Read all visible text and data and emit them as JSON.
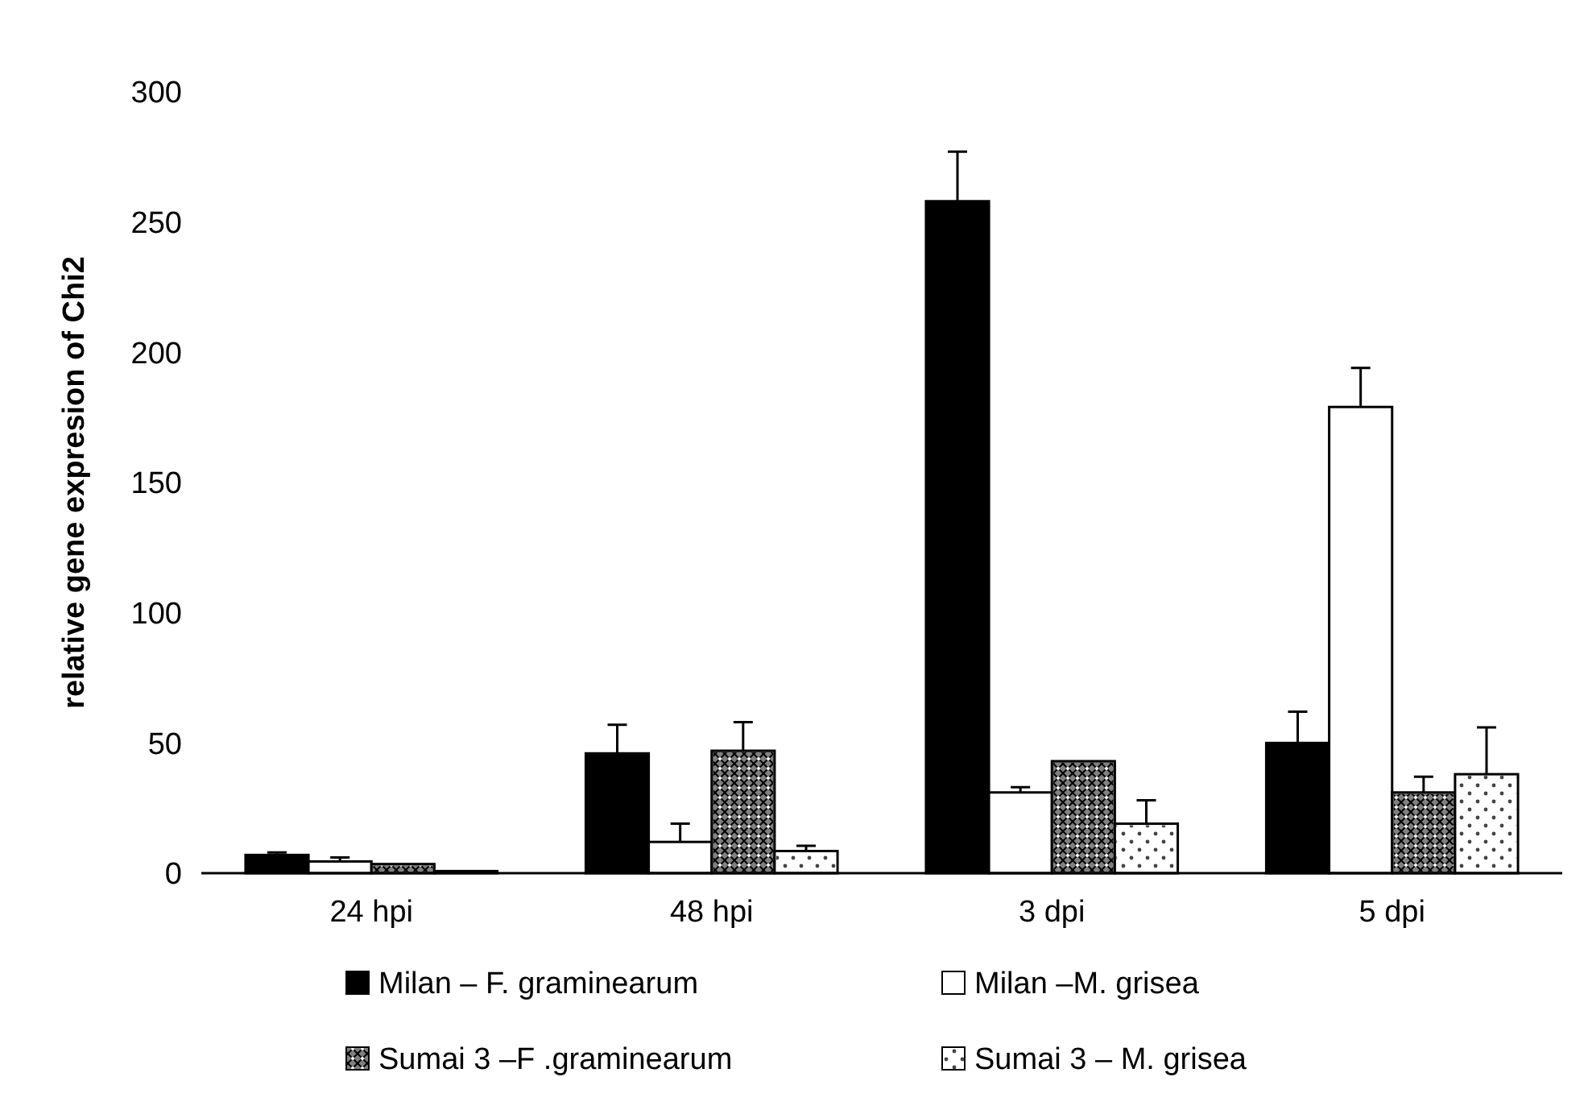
{
  "chart_data": {
    "type": "bar",
    "ylabel": "relative gene expresion of Chi2",
    "categories": [
      "24 hpi",
      "48 hpi",
      "3 dpi",
      "5 dpi"
    ],
    "ylim": [
      0,
      300
    ],
    "yticks": [
      0,
      50,
      100,
      150,
      200,
      250,
      300
    ],
    "legend": "bottom",
    "grid": false,
    "series": [
      {
        "name": "Milan – F. graminearum",
        "color": "#000000",
        "values": [
          7,
          46,
          258,
          50
        ],
        "errors": [
          [
            7,
            8
          ],
          [
            46,
            57
          ],
          [
            258,
            277
          ],
          [
            50,
            62
          ]
        ]
      },
      {
        "name": "Milan –M. grisea",
        "color": "#ffffff",
        "values": [
          4.5,
          12,
          31,
          179
        ],
        "errors": [
          [
            4.5,
            6
          ],
          [
            12,
            19
          ],
          [
            31,
            33
          ],
          [
            179,
            194
          ]
        ]
      },
      {
        "name": "Sumai 3 –F .graminearum",
        "color": "#808080",
        "values": [
          3.5,
          47,
          43,
          31
        ],
        "errors": [
          null,
          [
            47,
            58
          ],
          null,
          [
            31,
            37
          ]
        ]
      },
      {
        "name": "Sumai 3 – M. grisea",
        "color": "#ffffff",
        "values": [
          0.8,
          8.5,
          19,
          38
        ],
        "errors": [
          null,
          [
            8.5,
            10.5
          ],
          [
            19,
            28
          ],
          [
            38,
            56
          ]
        ]
      }
    ]
  }
}
